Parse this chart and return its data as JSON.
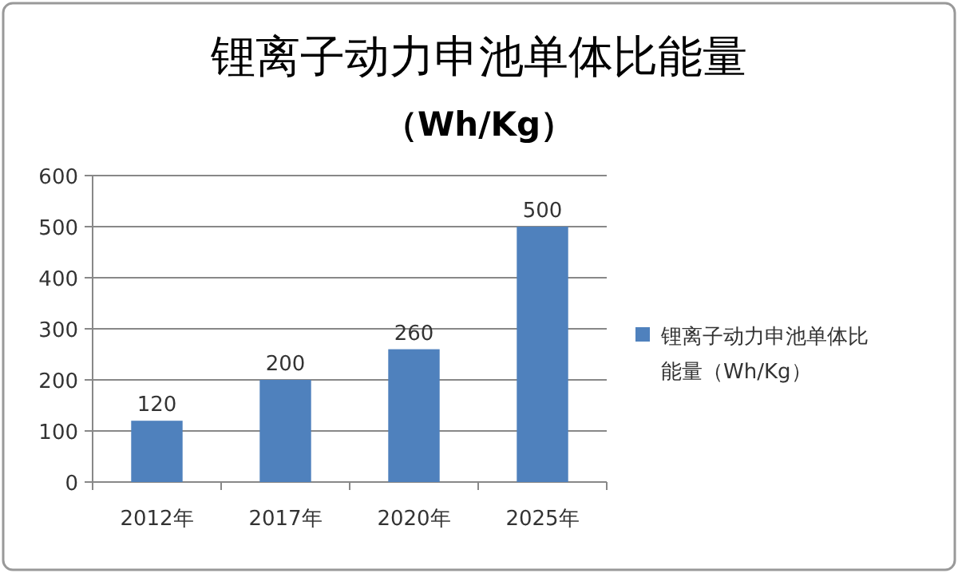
{
  "chart_data": {
    "type": "bar",
    "title": "锂离子动力申池单体比能量",
    "subtitle": "（Wh/Kg）",
    "categories": [
      "2012年",
      "2017年",
      "2020年",
      "2025年"
    ],
    "series": [
      {
        "name": "锂离子动力申池单体比能量（Wh/Kg）",
        "color": "#4f81bd",
        "values": [
          120,
          200,
          260,
          500
        ]
      }
    ],
    "ylim": [
      0,
      600
    ],
    "yticks": [
      0,
      100,
      200,
      300,
      400,
      500,
      600
    ],
    "grid": "y",
    "legend": "right",
    "data_labels": true
  }
}
